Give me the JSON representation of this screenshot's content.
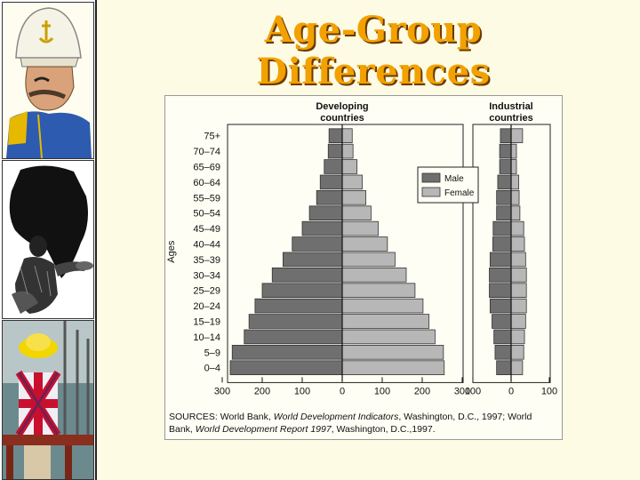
{
  "slide": {
    "title": "Age-Group Differences"
  },
  "photos": [
    {
      "icon": "explorer-cartoon-icon"
    },
    {
      "icon": "africa-figure-icon"
    },
    {
      "icon": "child-union-jack-icon"
    }
  ],
  "chart_data": {
    "type": "bar",
    "subtype": "population-pyramid",
    "ylabel": "Ages",
    "categories": [
      "0–4",
      "5–9",
      "10–14",
      "15–19",
      "20–24",
      "25–29",
      "30–34",
      "35–39",
      "40–44",
      "45–49",
      "50–54",
      "55–59",
      "60–64",
      "65–69",
      "70–74",
      "75+"
    ],
    "legend": {
      "placement": "top-right of left panel",
      "entries": [
        "Male",
        "Female"
      ]
    },
    "colors": {
      "male": "#6f6f6f",
      "female": "#b7b7b7"
    },
    "panels": [
      {
        "title_lines": [
          "Developing",
          "countries"
        ],
        "xlim": [
          -300,
          300
        ],
        "ticks": [
          -300,
          -200,
          -100,
          0,
          100,
          200,
          300
        ],
        "tick_labels": [
          "300",
          "200",
          "100",
          "0",
          "100",
          "200",
          "300"
        ],
        "series": [
          {
            "name": "Male",
            "values": [
              280,
              275,
              245,
              233,
              218,
              200,
              175,
              148,
              125,
              100,
              82,
              64,
              55,
              45,
              35,
              33
            ]
          },
          {
            "name": "Female",
            "values": [
              255,
              253,
              232,
              217,
              202,
              182,
              160,
              132,
              113,
              90,
              72,
              59,
              50,
              37,
              27,
              25
            ]
          }
        ]
      },
      {
        "title_lines": [
          "Industrial",
          "countries"
        ],
        "xlim": [
          -100,
          100
        ],
        "ticks": [
          -100,
          0,
          100
        ],
        "tick_labels": [
          "100",
          "0",
          "100"
        ],
        "series": [
          {
            "name": "Male",
            "values": [
              38,
              42,
              45,
              50,
              55,
              57,
              57,
              55,
              48,
              47,
              38,
              38,
              35,
              30,
              30,
              28
            ]
          },
          {
            "name": "Female",
            "values": [
              30,
              33,
              35,
              38,
              40,
              40,
              40,
              38,
              35,
              33,
              23,
              21,
              20,
              14,
              14,
              30
            ]
          }
        ]
      }
    ],
    "sources": {
      "prefix": "SOURCES:  World Bank, ",
      "title1": "World Development Indicators",
      "middle": ", Washington, D.C., 1997; World Bank, ",
      "title2": "World Development Report 1997",
      "suffix": ", Washington, D.C.,1997."
    }
  }
}
